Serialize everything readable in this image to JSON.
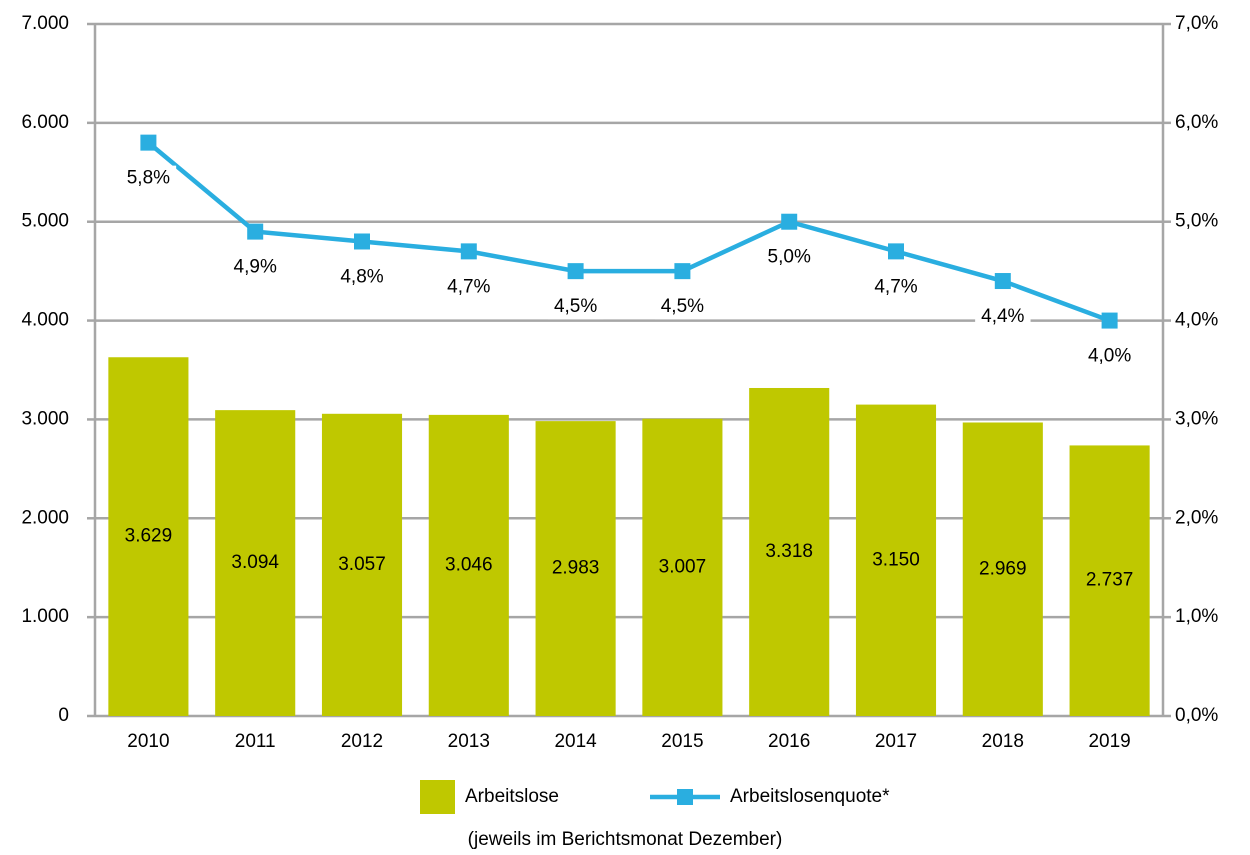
{
  "chart_data": {
    "type": "bar",
    "categories": [
      "2010",
      "2011",
      "2012",
      "2013",
      "2014",
      "2015",
      "2016",
      "2017",
      "2018",
      "2019"
    ],
    "series": [
      {
        "name": "Arbeitslose",
        "type": "bar",
        "color": "#bfc800",
        "values": [
          3629,
          3094,
          3057,
          3046,
          2983,
          3007,
          3318,
          3150,
          2969,
          2737
        ],
        "value_labels": [
          "3.629",
          "3.094",
          "3.057",
          "3.046",
          "2.983",
          "3.007",
          "3.318",
          "3.150",
          "2.969",
          "2.737"
        ]
      },
      {
        "name": "Arbeitslosenquote*",
        "type": "line",
        "axis": "y2",
        "color": "#2aaee0",
        "values": [
          5.8,
          4.9,
          4.8,
          4.7,
          4.5,
          4.5,
          5.0,
          4.7,
          4.4,
          4.0
        ],
        "value_labels": [
          "5,8%",
          "4,9%",
          "4,8%",
          "4,7%",
          "4,5%",
          "4,5%",
          "5,0%",
          "4,7%",
          "4,4%",
          "4,0%"
        ]
      }
    ],
    "ylim": [
      0,
      7000
    ],
    "yticks": [
      0,
      {
        "value": 1000,
        "label": "1.000"
      },
      {
        "value": 2000,
        "label": "2.000"
      },
      {
        "value": 3000,
        "label": "3.000"
      },
      {
        "value": 4000,
        "label": "4.000"
      },
      {
        "value": 5000,
        "label": "5.000"
      },
      {
        "value": 6000,
        "label": "6.000"
      },
      {
        "value": 7000,
        "label": "7.000"
      }
    ],
    "y2lim": [
      0,
      7
    ],
    "y2ticks": [
      {
        "value": 0,
        "label": "0,0%"
      },
      {
        "value": 1,
        "label": "1,0%"
      },
      {
        "value": 2,
        "label": "2,0%"
      },
      {
        "value": 3,
        "label": "3,0%"
      },
      {
        "value": 4,
        "label": "4,0%"
      },
      {
        "value": 5,
        "label": "5,0%"
      },
      {
        "value": 6,
        "label": "6,0%"
      },
      {
        "value": 7,
        "label": "7,0%"
      }
    ],
    "grid": true,
    "legend": "bottom",
    "note": "(jeweils im Berichtsmonat Dezember)"
  }
}
